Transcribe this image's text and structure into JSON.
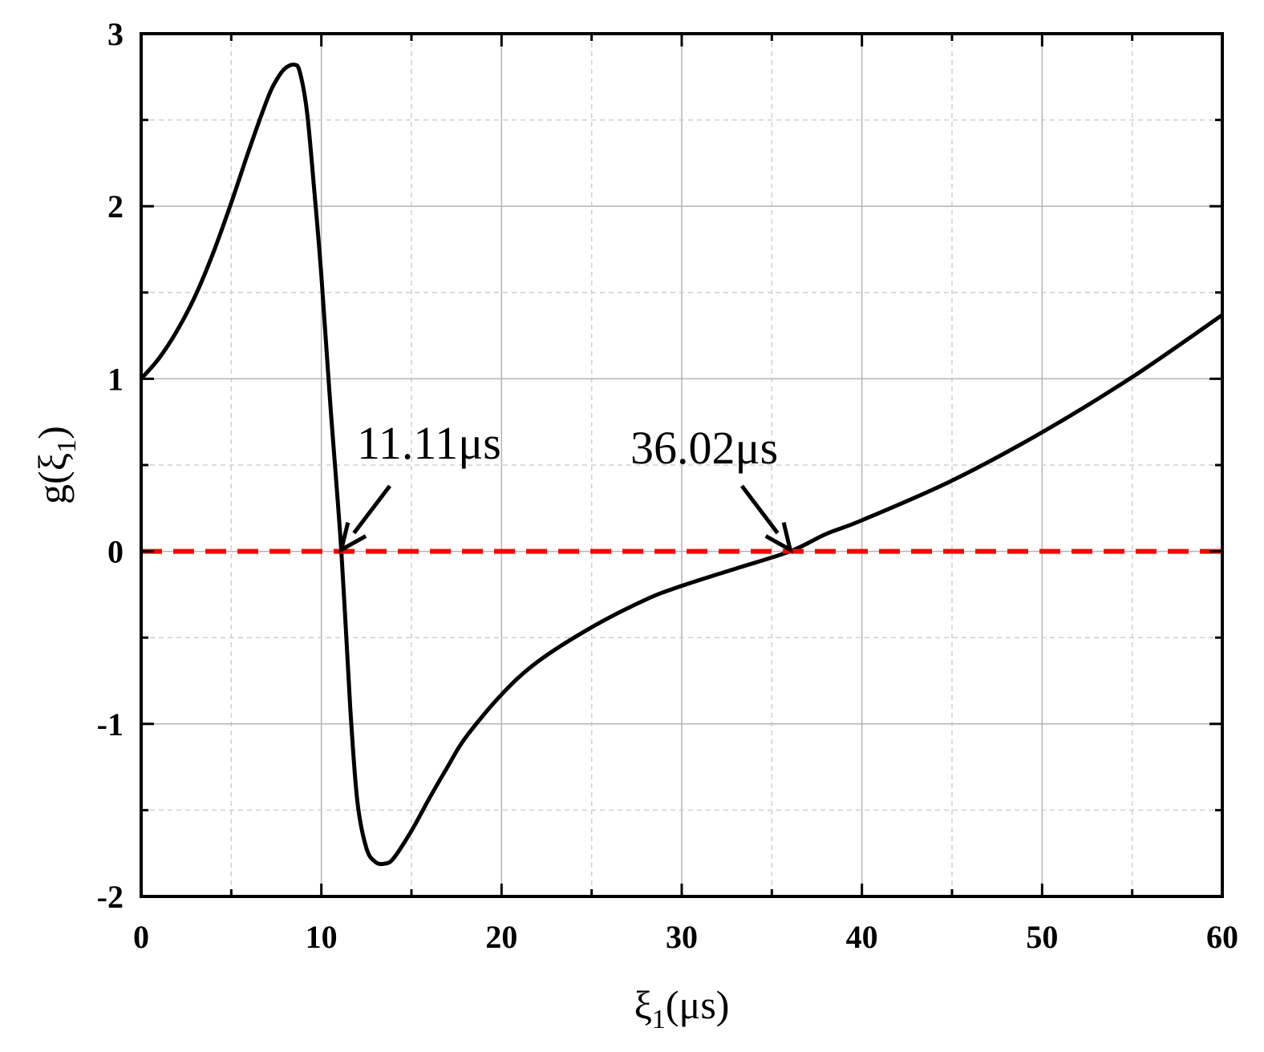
{
  "chart_data": {
    "type": "line",
    "title": "",
    "xlabel": "ξ1(μs)",
    "ylabel": "g(ξ1)",
    "xlim": [
      0,
      60
    ],
    "ylim": [
      -2,
      3
    ],
    "xticks": [
      "0",
      "10",
      "20",
      "30",
      "40",
      "50",
      "60"
    ],
    "yticks": [
      "3",
      "2",
      "1",
      "0",
      "-1",
      "-2"
    ],
    "grid": true,
    "series": [
      {
        "color": "#000000",
        "style": "solid",
        "x": [
          0,
          1,
          2,
          3,
          4,
          5,
          6,
          7,
          7.5,
          8,
          8.5,
          8.8,
          9.2,
          9.6,
          10,
          10.5,
          11.11,
          11.6,
          12,
          12.5,
          13,
          13.5,
          14,
          15,
          16,
          17,
          18,
          20,
          22,
          25,
          28,
          30,
          33,
          36.02,
          38,
          40,
          45,
          50,
          55,
          60
        ],
        "y": [
          1.0,
          1.12,
          1.28,
          1.48,
          1.73,
          2.02,
          2.33,
          2.62,
          2.73,
          2.8,
          2.82,
          2.78,
          2.55,
          2.1,
          1.6,
          0.85,
          0.0,
          -0.9,
          -1.45,
          -1.72,
          -1.8,
          -1.81,
          -1.78,
          -1.62,
          -1.43,
          -1.25,
          -1.08,
          -0.83,
          -0.64,
          -0.44,
          -0.28,
          -0.2,
          -0.1,
          0.0,
          0.1,
          0.18,
          0.41,
          0.69,
          1.01,
          1.37
        ]
      },
      {
        "color": "#ff0000",
        "style": "dashed",
        "x": [
          0,
          60
        ],
        "y": [
          0,
          0
        ]
      }
    ],
    "annotations": [
      {
        "text": "11.11μs",
        "x": 11.11,
        "y": 0
      },
      {
        "text": "36.02μs",
        "x": 36.02,
        "y": 0
      }
    ]
  }
}
